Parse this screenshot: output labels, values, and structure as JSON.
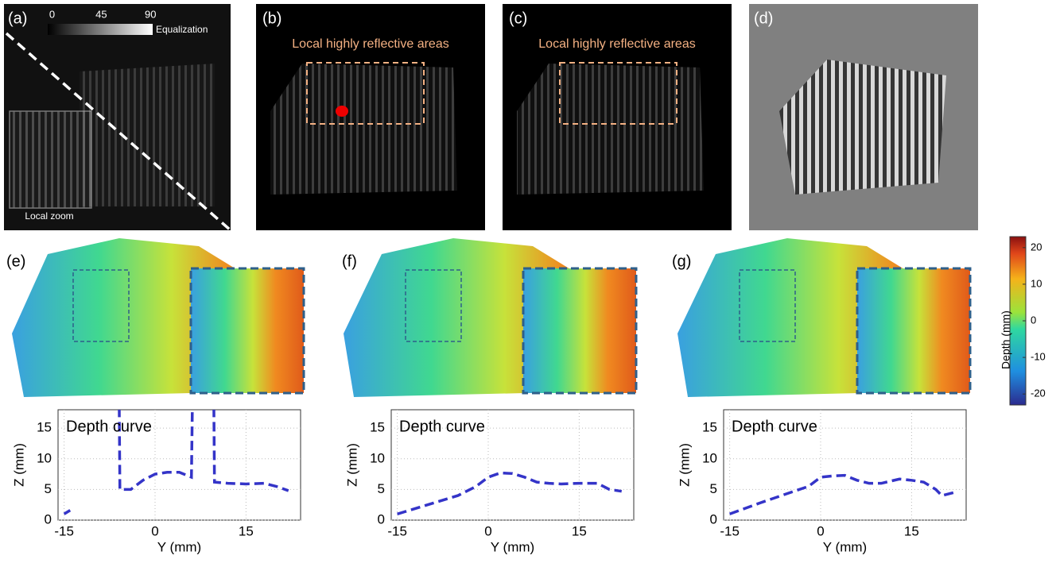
{
  "panels": {
    "labels": [
      "(a)",
      "(b)",
      "(c)",
      "(d)",
      "(e)",
      "(f)",
      "(g)"
    ],
    "local_zoom": "Local zoom",
    "reflective_b": "Local highly reflective areas",
    "reflective_c": "Local highly reflective areas"
  },
  "equalization": {
    "label": "Equalization",
    "lim": [
      -4,
      92
    ],
    "ticks": [
      0,
      45,
      90
    ]
  },
  "colorbar": {
    "label": "Depth (mm)",
    "lim": [
      -23,
      23
    ],
    "ticks": [
      20,
      10,
      0,
      -10,
      -20
    ]
  },
  "chart_data": [
    {
      "type": "line",
      "annotation": "Depth curve",
      "xlabel": "Y (mm)",
      "ylabel": "Z (mm)",
      "x": [
        -15,
        -14,
        -10,
        -6,
        -5.8,
        -4,
        -2,
        0,
        2,
        4,
        6,
        6.3,
        8,
        9.6,
        9.8,
        12,
        15,
        18,
        20,
        22
      ],
      "series": [
        {
          "color": "#3434c8",
          "values": [
            1,
            1.6,
            null,
            30,
            5,
            5,
            6.5,
            7.5,
            7.8,
            7.8,
            7,
            30,
            null,
            30,
            6.2,
            6,
            5.9,
            6,
            5.5,
            4.8
          ]
        }
      ],
      "xlim": [
        -16,
        24
      ],
      "ylim": [
        0,
        18
      ],
      "xticks": [
        -15,
        0,
        15
      ],
      "yticks": [
        0,
        5,
        10,
        15
      ],
      "grid": true
    },
    {
      "type": "line",
      "annotation": "Depth curve",
      "xlabel": "Y (mm)",
      "ylabel": "Z (mm)",
      "x": [
        -15,
        -10,
        -5,
        -2,
        0,
        2,
        4,
        6,
        8,
        10,
        12,
        15,
        18,
        20,
        22
      ],
      "series": [
        {
          "color": "#3434c8",
          "values": [
            1,
            2.5,
            4,
            5.5,
            7,
            7.7,
            7.6,
            7,
            6.2,
            6,
            5.9,
            6,
            6,
            5,
            4.7
          ]
        }
      ],
      "xlim": [
        -16,
        24
      ],
      "ylim": [
        0,
        18
      ],
      "xticks": [
        -15,
        0,
        15
      ],
      "yticks": [
        0,
        5,
        10,
        15
      ],
      "grid": true
    },
    {
      "type": "line",
      "annotation": "Depth curve",
      "xlabel": "Y (mm)",
      "ylabel": "Z (mm)",
      "x": [
        -15,
        -10,
        -5,
        -2,
        0,
        2,
        4,
        6,
        8,
        10,
        13,
        15,
        17,
        19,
        20,
        22
      ],
      "series": [
        {
          "color": "#3434c8",
          "values": [
            1,
            2.8,
            4.5,
            5.5,
            7,
            7.2,
            7.3,
            6.5,
            6,
            6,
            6.7,
            6.5,
            6.2,
            5,
            4,
            4.5
          ]
        }
      ],
      "xlim": [
        -16,
        24
      ],
      "ylim": [
        0,
        18
      ],
      "xticks": [
        -15,
        0,
        15
      ],
      "yticks": [
        0,
        5,
        10,
        15
      ],
      "grid": true
    }
  ]
}
